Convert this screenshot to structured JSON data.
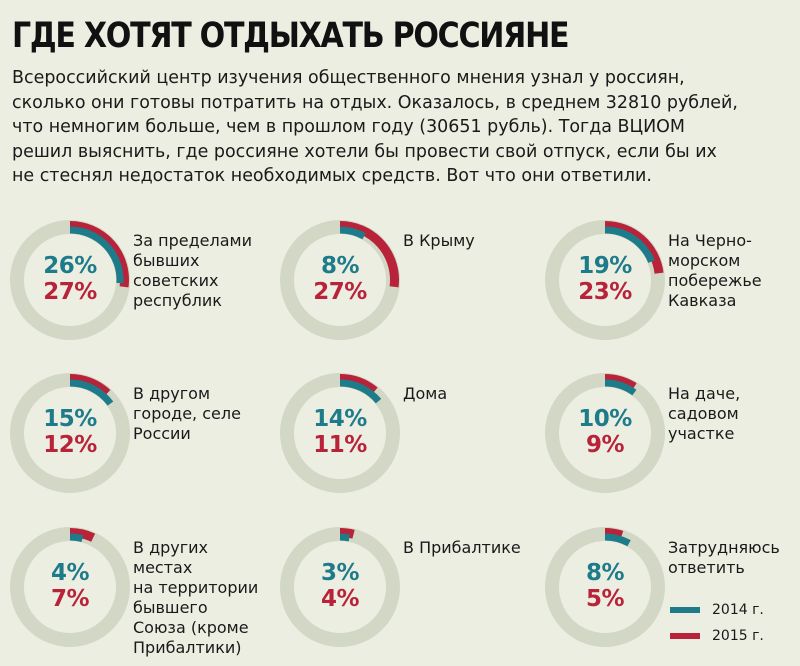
{
  "title": "ГДЕ ХОТЯТ ОТДЫХАТЬ РОССИЯНЕ",
  "lead": [
    "Всероссийский центр изучения общественного мнения узнал у россиян,",
    "сколько они готовы потратить на отдых. Оказалось, в среднем 32810 рублей,",
    "что немногим больше, чем в прошлом году (30651 рубль). Тогда ВЦИОМ",
    "решил выяснить, где россияне хотели бы провести свой отпуск, если бы их",
    "не стеснял недостаток необходимых средств. Вот что они ответили."
  ],
  "colors": {
    "series_2014": "#1d7b8a",
    "series_2015": "#b8233a",
    "track": "#d2d8c5"
  },
  "chart_data": {
    "type": "pie",
    "unit": "%",
    "series": [
      {
        "name": "2014 г.",
        "color": "#1d7b8a"
      },
      {
        "name": "2015 г.",
        "color": "#b8233a"
      }
    ],
    "legend_position": "bottom-right",
    "categories": [
      {
        "label": "За пределами бывших советских республик",
        "lines": [
          "За пределами",
          "бывших",
          "советских",
          "республик"
        ],
        "values": [
          26,
          27
        ]
      },
      {
        "label": "В Крыму",
        "lines": [
          "В Крыму"
        ],
        "values": [
          8,
          27
        ]
      },
      {
        "label": "На Черноморском побережье Кавказа",
        "lines": [
          "На Черно-",
          "морском",
          "побережье",
          "Кавказа"
        ],
        "values": [
          19,
          23
        ]
      },
      {
        "label": "В другом городе, селе России",
        "lines": [
          "В другом",
          "городе, селе",
          "России"
        ],
        "values": [
          15,
          12
        ]
      },
      {
        "label": "Дома",
        "lines": [
          "Дома"
        ],
        "values": [
          14,
          11
        ]
      },
      {
        "label": "На даче, садовом участке",
        "lines": [
          "На даче,",
          "садовом",
          "участке"
        ],
        "values": [
          10,
          9
        ]
      },
      {
        "label": "В других местах на территории бывшего Союза (кроме Прибалтики)",
        "lines": [
          "В других",
          "местах",
          "на территории",
          "бывшего",
          "Союза (кроме",
          "Прибалтики)"
        ],
        "values": [
          4,
          7
        ]
      },
      {
        "label": "В Прибалтике",
        "lines": [
          "В Прибалтике"
        ],
        "values": [
          3,
          4
        ]
      },
      {
        "label": "Затрудняюсь ответить",
        "lines": [
          "Затрудняюсь",
          "ответить"
        ],
        "values": [
          8,
          5
        ]
      }
    ]
  },
  "legend": [
    {
      "text": "2014 г.",
      "color": "#1d7b8a"
    },
    {
      "text": "2015 г.",
      "color": "#b8233a"
    }
  ]
}
